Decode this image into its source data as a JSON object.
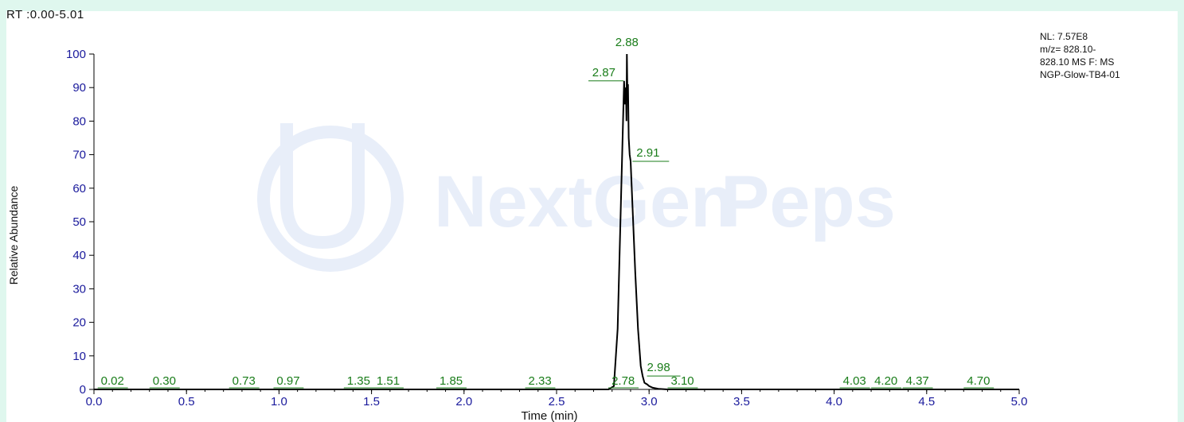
{
  "header": {
    "rt_range": "RT :0.00-5.01"
  },
  "info_box": {
    "lines": [
      "NL: 7.57E8",
      "m/z= 828.10-",
      "828.10 MS  F: MS",
      "NGP-Glow-TB4-01"
    ]
  },
  "watermark": {
    "brand_bold": "NextGen",
    "brand_light": "Peps",
    "color": "#e8eef9"
  },
  "colors": {
    "background": "#dff7ee",
    "trace": "#000000",
    "annotation": "#1a7d1a",
    "tick": "#1a1a9c"
  },
  "chart_data": {
    "type": "line",
    "xlabel": "Time (min)",
    "ylabel": "Relative Abundance",
    "xlim": [
      0.0,
      5.0
    ],
    "ylim": [
      0,
      100
    ],
    "x_ticks": [
      "0.0",
      "0.5",
      "1.0",
      "1.5",
      "2.0",
      "2.5",
      "3.0",
      "3.5",
      "4.0",
      "4.5",
      "5.0"
    ],
    "y_ticks": [
      "0",
      "10",
      "20",
      "30",
      "40",
      "50",
      "60",
      "70",
      "80",
      "90",
      "100"
    ],
    "series": [
      {
        "x": [
          0.0,
          2.78,
          2.81,
          2.83,
          2.845,
          2.86,
          2.865,
          2.87,
          2.875,
          2.878,
          2.88,
          2.883,
          2.886,
          2.89,
          2.895,
          2.9,
          2.91,
          2.925,
          2.94,
          2.955,
          2.965,
          2.97,
          2.975,
          2.98,
          2.99,
          3.0,
          3.02,
          3.05,
          3.1,
          5.0
        ],
        "y": [
          0,
          0,
          1,
          18,
          50,
          82,
          92,
          85,
          90,
          80,
          100,
          88,
          91,
          75,
          70,
          68,
          55,
          35,
          18,
          7,
          4,
          3,
          2,
          1.8,
          1.5,
          1,
          0.5,
          0.2,
          0,
          0
        ]
      }
    ],
    "peak_labels": [
      {
        "label": "0.02",
        "x": 0.02,
        "y": 0
      },
      {
        "label": "0.30",
        "x": 0.3,
        "y": 0
      },
      {
        "label": "0.73",
        "x": 0.73,
        "y": 0
      },
      {
        "label": "0.97",
        "x": 0.97,
        "y": 0
      },
      {
        "label": "1.35",
        "x": 1.35,
        "y": 0
      },
      {
        "label": "1.51",
        "x": 1.51,
        "y": 0
      },
      {
        "label": "1.85",
        "x": 1.85,
        "y": 0
      },
      {
        "label": "2.33",
        "x": 2.33,
        "y": 0
      },
      {
        "label": "2.78",
        "x": 2.78,
        "y": 0
      },
      {
        "label": "2.87",
        "x": 2.87,
        "y": 92
      },
      {
        "label": "2.88",
        "x": 2.88,
        "y": 100
      },
      {
        "label": "2.91",
        "x": 2.91,
        "y": 68
      },
      {
        "label": "2.98",
        "x": 2.98,
        "y": 4
      },
      {
        "label": "3.10",
        "x": 3.1,
        "y": 0
      },
      {
        "label": "4.03",
        "x": 4.03,
        "y": 0
      },
      {
        "label": "4.20",
        "x": 4.2,
        "y": 0
      },
      {
        "label": "4.37",
        "x": 4.37,
        "y": 0
      },
      {
        "label": "4.70",
        "x": 4.7,
        "y": 0
      }
    ]
  }
}
